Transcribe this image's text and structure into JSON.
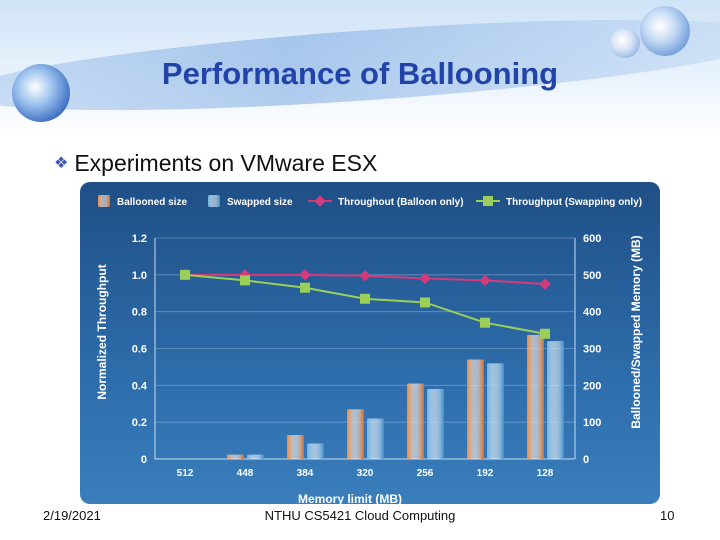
{
  "slide": {
    "title": "Performance of Ballooning",
    "bullet": "Experiments on VMware ESX",
    "bullet_mark": "❖",
    "footer": {
      "date": "2/19/2021",
      "course": "NTHU CS5421 Cloud Computing",
      "page": "10"
    }
  },
  "colors": {
    "ballooned": "#f08a3c",
    "swapped": "#6fb3e3",
    "balloon_line": "#d63a7a",
    "swap_line": "#9bcf5a",
    "title": "#2244a8"
  },
  "chart_data": {
    "type": "bar",
    "categories": [
      "512",
      "448",
      "384",
      "320",
      "256",
      "192",
      "128"
    ],
    "xlabel": "Memory limit (MB)",
    "ylabel": "Normalized Throughput",
    "y2label": "Ballooned/Swapped Memory (MB)",
    "ylim": [
      0,
      1.2
    ],
    "y2lim": [
      0,
      600
    ],
    "yticks": [
      "0",
      "0.2",
      "0.4",
      "0.6",
      "0.8",
      "1.0",
      "1.2"
    ],
    "y2ticks": [
      "0",
      "100",
      "200",
      "300",
      "400",
      "500",
      "600"
    ],
    "series": [
      {
        "name": "Ballooned size",
        "kind": "bar",
        "axis": "y2",
        "values": [
          0,
          12,
          65,
          135,
          205,
          270,
          337
        ]
      },
      {
        "name": "Swapped size",
        "kind": "bar",
        "axis": "y2",
        "values": [
          0,
          12,
          42,
          110,
          190,
          260,
          320
        ]
      },
      {
        "name": "Throughout (Balloon only)",
        "kind": "line",
        "axis": "y",
        "values": [
          1.0,
          1.0,
          1.0,
          0.995,
          0.98,
          0.97,
          0.95
        ]
      },
      {
        "name": "Throughput (Swapping only)",
        "kind": "line",
        "axis": "y",
        "values": [
          1.0,
          0.97,
          0.93,
          0.87,
          0.85,
          0.74,
          0.68
        ]
      }
    ]
  }
}
